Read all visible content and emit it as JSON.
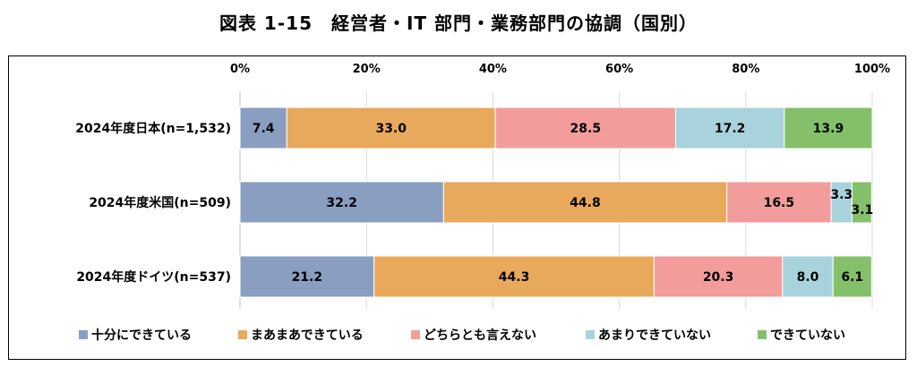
{
  "title": "図表 1-15　経営者・IT 部門・業務部門の協調（国別）",
  "chart_data": {
    "type": "bar",
    "orientation": "horizontal",
    "stacked": "100%",
    "categories": [
      "2024年度日本(n=1,532)",
      "2024年度米国(n=509)",
      "2024年度ドイツ(n=537)"
    ],
    "x_ticks": [
      "0%",
      "20%",
      "40%",
      "60%",
      "80%",
      "100%"
    ],
    "xlim": [
      0,
      100
    ],
    "grid": true,
    "legend_position": "bottom",
    "series": [
      {
        "name": "十分にできている",
        "color": "#8a9ec2",
        "values": [
          7.4,
          32.2,
          21.2
        ]
      },
      {
        "name": "まあまあできている",
        "color": "#e8a95c",
        "values": [
          33.0,
          44.8,
          44.3
        ]
      },
      {
        "name": "どちらとも言えない",
        "color": "#f29d9b",
        "values": [
          28.5,
          16.5,
          20.3
        ]
      },
      {
        "name": "あまりできていない",
        "color": "#a9d3dc",
        "values": [
          17.2,
          3.3,
          8.0
        ]
      },
      {
        "name": "できていない",
        "color": "#84c06a",
        "values": [
          13.9,
          3.1,
          6.1
        ]
      }
    ]
  }
}
